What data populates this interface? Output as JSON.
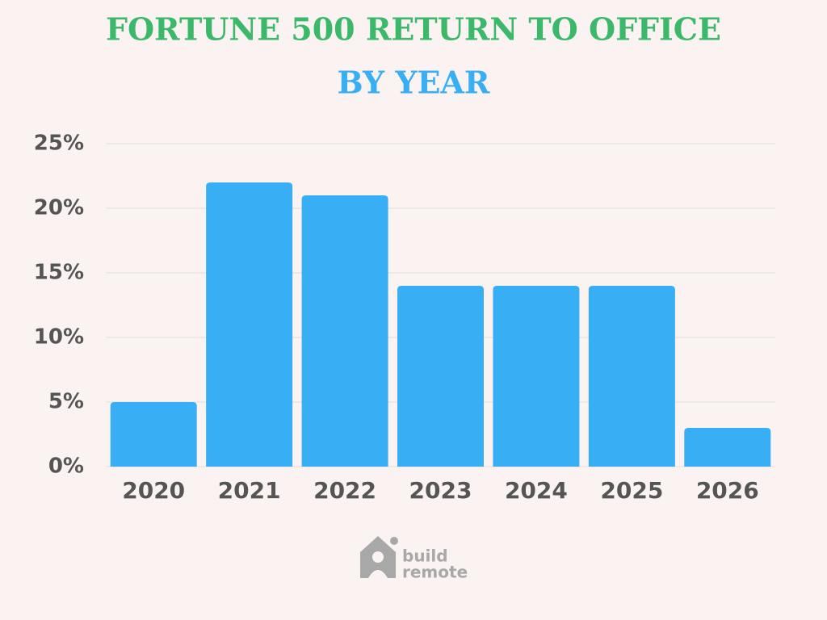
{
  "chart_data": {
    "type": "bar",
    "title": "FORTUNE 500 RETURN TO OFFICE",
    "subtitle": "BY YEAR",
    "categories": [
      "2020",
      "2021",
      "2022",
      "2023",
      "2024",
      "2025",
      "2026"
    ],
    "values": [
      5,
      22,
      21,
      14,
      14,
      14,
      3
    ],
    "color": "#38aef5",
    "ylim": [
      0,
      25
    ],
    "yticks": [
      {
        "value": 0,
        "label": "0%"
      },
      {
        "value": 5,
        "label": "5%"
      },
      {
        "value": 10,
        "label": "10%"
      },
      {
        "value": 15,
        "label": "15%"
      },
      {
        "value": 20,
        "label": "20%"
      },
      {
        "value": 25,
        "label": "25%"
      }
    ],
    "grid": true
  },
  "logo": {
    "line1": "build",
    "line2": "remote"
  }
}
